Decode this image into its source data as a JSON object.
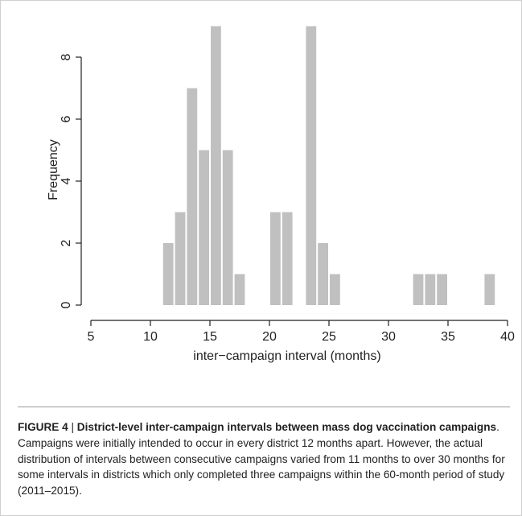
{
  "chart_data": {
    "type": "bar",
    "xlabel": "inter−campaign interval (months)",
    "ylabel": "Frequency",
    "xlim": [
      5,
      40
    ],
    "ylim": [
      0,
      9
    ],
    "x_ticks": [
      "5",
      "10",
      "15",
      "20",
      "25",
      "30",
      "35",
      "40"
    ],
    "y_ticks": [
      "0",
      "2",
      "4",
      "6",
      "8"
    ],
    "bin_width": 1,
    "bar_color": "#c0c0c0",
    "bins": [
      {
        "x": [
          11,
          12
        ],
        "count": 2
      },
      {
        "x": [
          12,
          13
        ],
        "count": 3
      },
      {
        "x": [
          13,
          14
        ],
        "count": 7
      },
      {
        "x": [
          14,
          15
        ],
        "count": 5
      },
      {
        "x": [
          15,
          16
        ],
        "count": 9
      },
      {
        "x": [
          16,
          17
        ],
        "count": 5
      },
      {
        "x": [
          17,
          18
        ],
        "count": 1
      },
      {
        "x": [
          20,
          21
        ],
        "count": 3
      },
      {
        "x": [
          21,
          22
        ],
        "count": 3
      },
      {
        "x": [
          23,
          24
        ],
        "count": 9
      },
      {
        "x": [
          24,
          25
        ],
        "count": 2
      },
      {
        "x": [
          25,
          26
        ],
        "count": 1
      },
      {
        "x": [
          32,
          33
        ],
        "count": 1
      },
      {
        "x": [
          33,
          34
        ],
        "count": 1
      },
      {
        "x": [
          34,
          35
        ],
        "count": 1
      },
      {
        "x": [
          38,
          39
        ],
        "count": 1
      }
    ]
  },
  "caption": {
    "label": "FIGURE 4",
    "separator": " | ",
    "title": "District-level inter-campaign intervals between mass dog vaccination campaigns",
    "body": ". Campaigns were initially intended to occur in every district 12 months apart. However, the actual distribution of intervals between consecutive campaigns varied from 11 months to over 30 months for some intervals in districts which only completed three campaigns within the 60-month period of study (2011–2015)."
  }
}
